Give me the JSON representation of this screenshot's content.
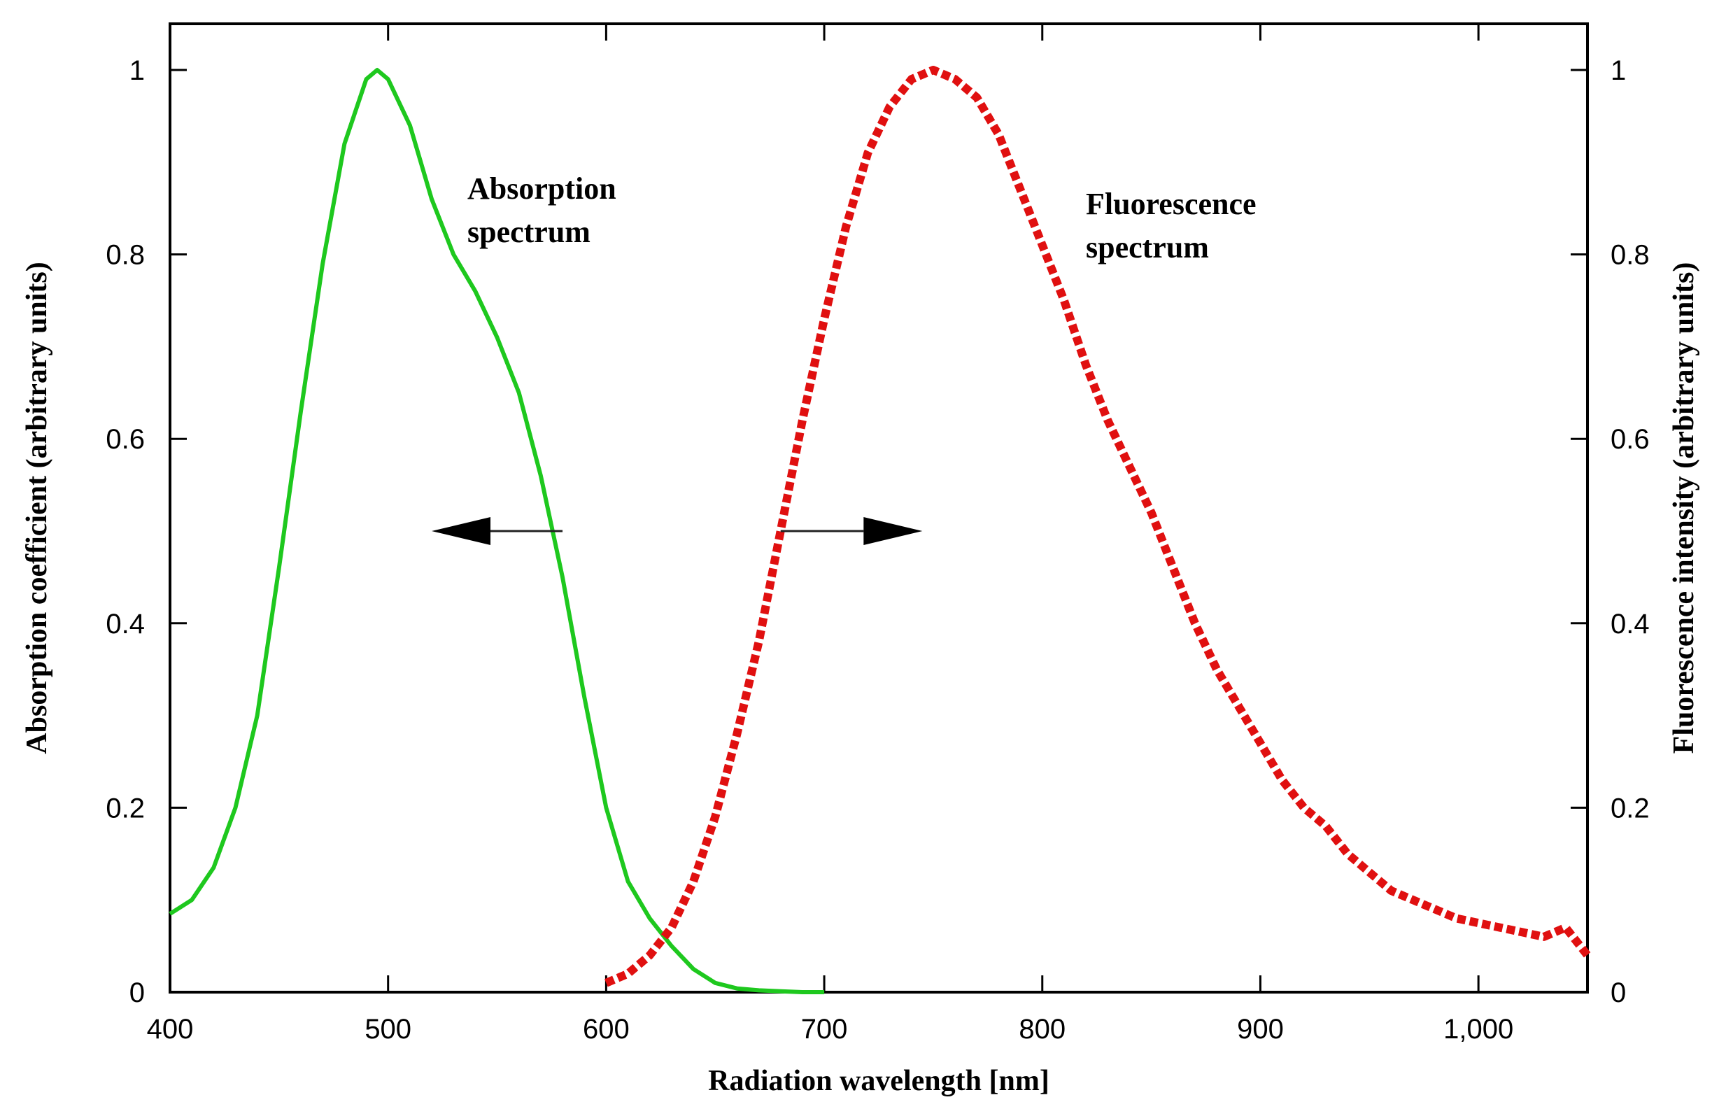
{
  "chart_data": {
    "type": "line",
    "title": "",
    "xlabel": "Radiation wavelength [nm]",
    "ylabel_left": "Absorption coefficient (arbitrary units)",
    "ylabel_right": "Fluorescence intensity (arbitrary units)",
    "xlim": [
      400,
      1050
    ],
    "ylim": [
      0,
      1
    ],
    "x_ticks": [
      400,
      500,
      600,
      700,
      800,
      900,
      1000
    ],
    "x_tick_labels": [
      "400",
      "500",
      "600",
      "700",
      "800",
      "900",
      "1,000"
    ],
    "y_ticks": [
      0,
      0.2,
      0.4,
      0.6,
      0.8,
      1
    ],
    "y_tick_labels": [
      "0",
      "0.2",
      "0.4",
      "0.6",
      "0.8",
      "1"
    ],
    "series": [
      {
        "name": "Absorption spectrum",
        "style": "solid",
        "color": "#1ec81e",
        "x": [
          400,
          410,
          420,
          430,
          440,
          450,
          460,
          470,
          480,
          490,
          495,
          500,
          510,
          520,
          530,
          540,
          550,
          560,
          570,
          580,
          590,
          600,
          610,
          620,
          630,
          640,
          650,
          660,
          670,
          680,
          690,
          700
        ],
        "y": [
          0.085,
          0.1,
          0.135,
          0.2,
          0.3,
          0.46,
          0.63,
          0.79,
          0.92,
          0.99,
          1.0,
          0.99,
          0.94,
          0.86,
          0.8,
          0.76,
          0.71,
          0.65,
          0.56,
          0.45,
          0.32,
          0.2,
          0.12,
          0.08,
          0.05,
          0.025,
          0.01,
          0.004,
          0.002,
          0.001,
          0.0,
          0.0
        ]
      },
      {
        "name": "Fluorescence spectrum",
        "style": "dotted",
        "color": "#e01010",
        "x": [
          600,
          610,
          620,
          630,
          640,
          650,
          660,
          670,
          680,
          690,
          700,
          710,
          720,
          730,
          740,
          750,
          760,
          770,
          780,
          790,
          800,
          810,
          820,
          830,
          840,
          850,
          860,
          870,
          880,
          890,
          900,
          910,
          920,
          930,
          940,
          950,
          960,
          970,
          980,
          990,
          1000,
          1010,
          1020,
          1030,
          1040,
          1050
        ],
        "y": [
          0.01,
          0.02,
          0.04,
          0.07,
          0.12,
          0.19,
          0.28,
          0.38,
          0.5,
          0.62,
          0.73,
          0.83,
          0.91,
          0.96,
          0.99,
          1.0,
          0.99,
          0.97,
          0.93,
          0.87,
          0.81,
          0.75,
          0.68,
          0.62,
          0.57,
          0.52,
          0.46,
          0.4,
          0.35,
          0.31,
          0.27,
          0.23,
          0.2,
          0.18,
          0.15,
          0.13,
          0.11,
          0.1,
          0.09,
          0.08,
          0.075,
          0.07,
          0.065,
          0.06,
          0.07,
          0.04
        ]
      }
    ],
    "annotations": {
      "absorption_line1": "Absorption",
      "absorption_line2": "spectrum",
      "fluorescence_line1": "Fluorescence",
      "fluorescence_line2": "spectrum"
    },
    "arrows": [
      {
        "name": "absorption-axis-arrow",
        "direction": "left",
        "x_from": 580,
        "x_to": 520,
        "y": 0.5
      },
      {
        "name": "fluorescence-axis-arrow",
        "direction": "right",
        "x_from": 680,
        "x_to": 745,
        "y": 0.5
      }
    ]
  }
}
